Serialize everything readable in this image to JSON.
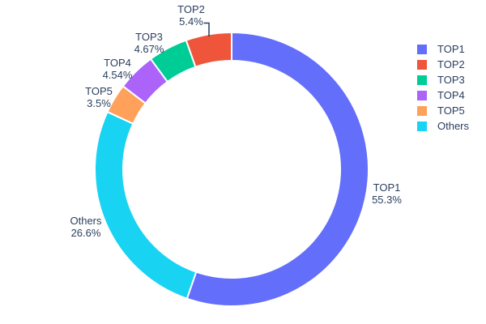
{
  "chart_data": {
    "type": "pie",
    "title": "",
    "hole_ratio": 0.79,
    "grid": false,
    "legend_position": "right",
    "background_color": "#FFFFFF",
    "text_color": "#2A3F5F",
    "slice_border_color": "#FFFFFF",
    "categories": [
      "TOP1",
      "TOP2",
      "TOP3",
      "TOP4",
      "TOP5",
      "Others"
    ],
    "values": [
      55.3,
      5.4,
      4.67,
      4.54,
      3.5,
      26.6
    ],
    "slices": [
      {
        "label": "TOP1",
        "value": 55.3,
        "display": "55.3%",
        "color": "#636EFA"
      },
      {
        "label": "TOP2",
        "value": 5.4,
        "display": "5.4%",
        "color": "#EF553B"
      },
      {
        "label": "TOP3",
        "value": 4.67,
        "display": "4.67%",
        "color": "#00CC96"
      },
      {
        "label": "TOP4",
        "value": 4.54,
        "display": "4.54%",
        "color": "#AB63FA"
      },
      {
        "label": "TOP5",
        "value": 3.5,
        "display": "3.5%",
        "color": "#FFA15A"
      },
      {
        "label": "Others",
        "value": 26.6,
        "display": "26.6%",
        "color": "#19D3F3"
      }
    ],
    "legend_entries": [
      "TOP1",
      "TOP2",
      "TOP3",
      "TOP4",
      "TOP5",
      "Others"
    ]
  }
}
